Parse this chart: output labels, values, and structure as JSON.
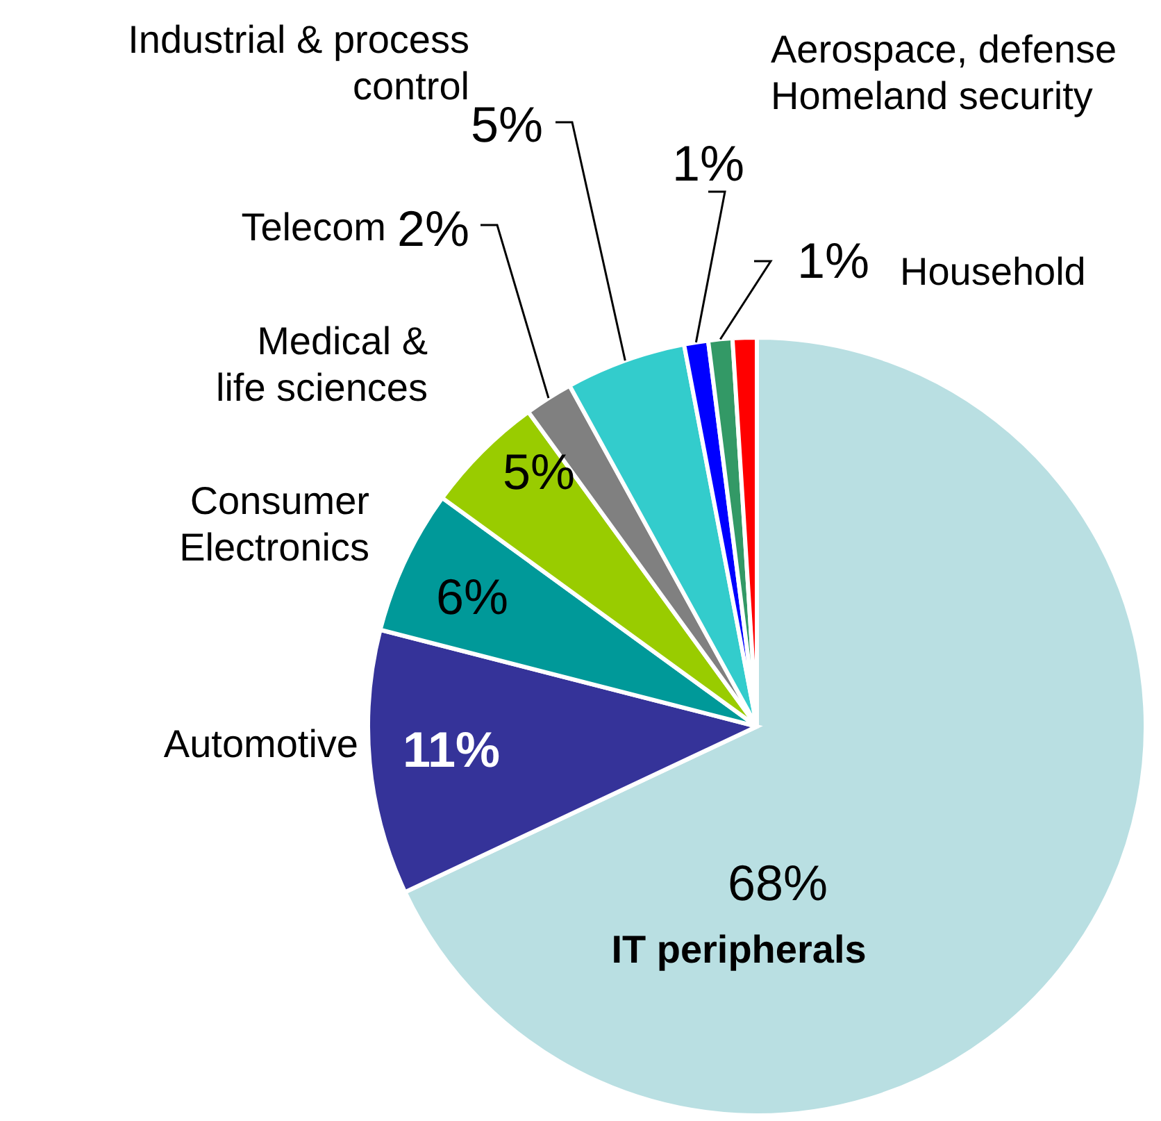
{
  "chart_data": {
    "type": "pie",
    "categories": [
      "IT peripherals",
      "Automotive",
      "Consumer\nElectronics",
      "Medical &\nlife sciences",
      "Telecom",
      "Industrial & process\ncontrol",
      "Aerospace, defense\nHomeland security",
      "Household",
      null
    ],
    "values": [
      68,
      11,
      6,
      5,
      2,
      5,
      1,
      1,
      1
    ],
    "value_labels": [
      "68%",
      "11%",
      "6%",
      "5%",
      "2%",
      "5%",
      "1%",
      "1%",
      null
    ],
    "colors": [
      "#b9dfe2",
      "#353399",
      "#009999",
      "#99cc00",
      "#808080",
      "#33cccc",
      "#0000ff",
      "#339966",
      "#ff0000"
    ]
  }
}
